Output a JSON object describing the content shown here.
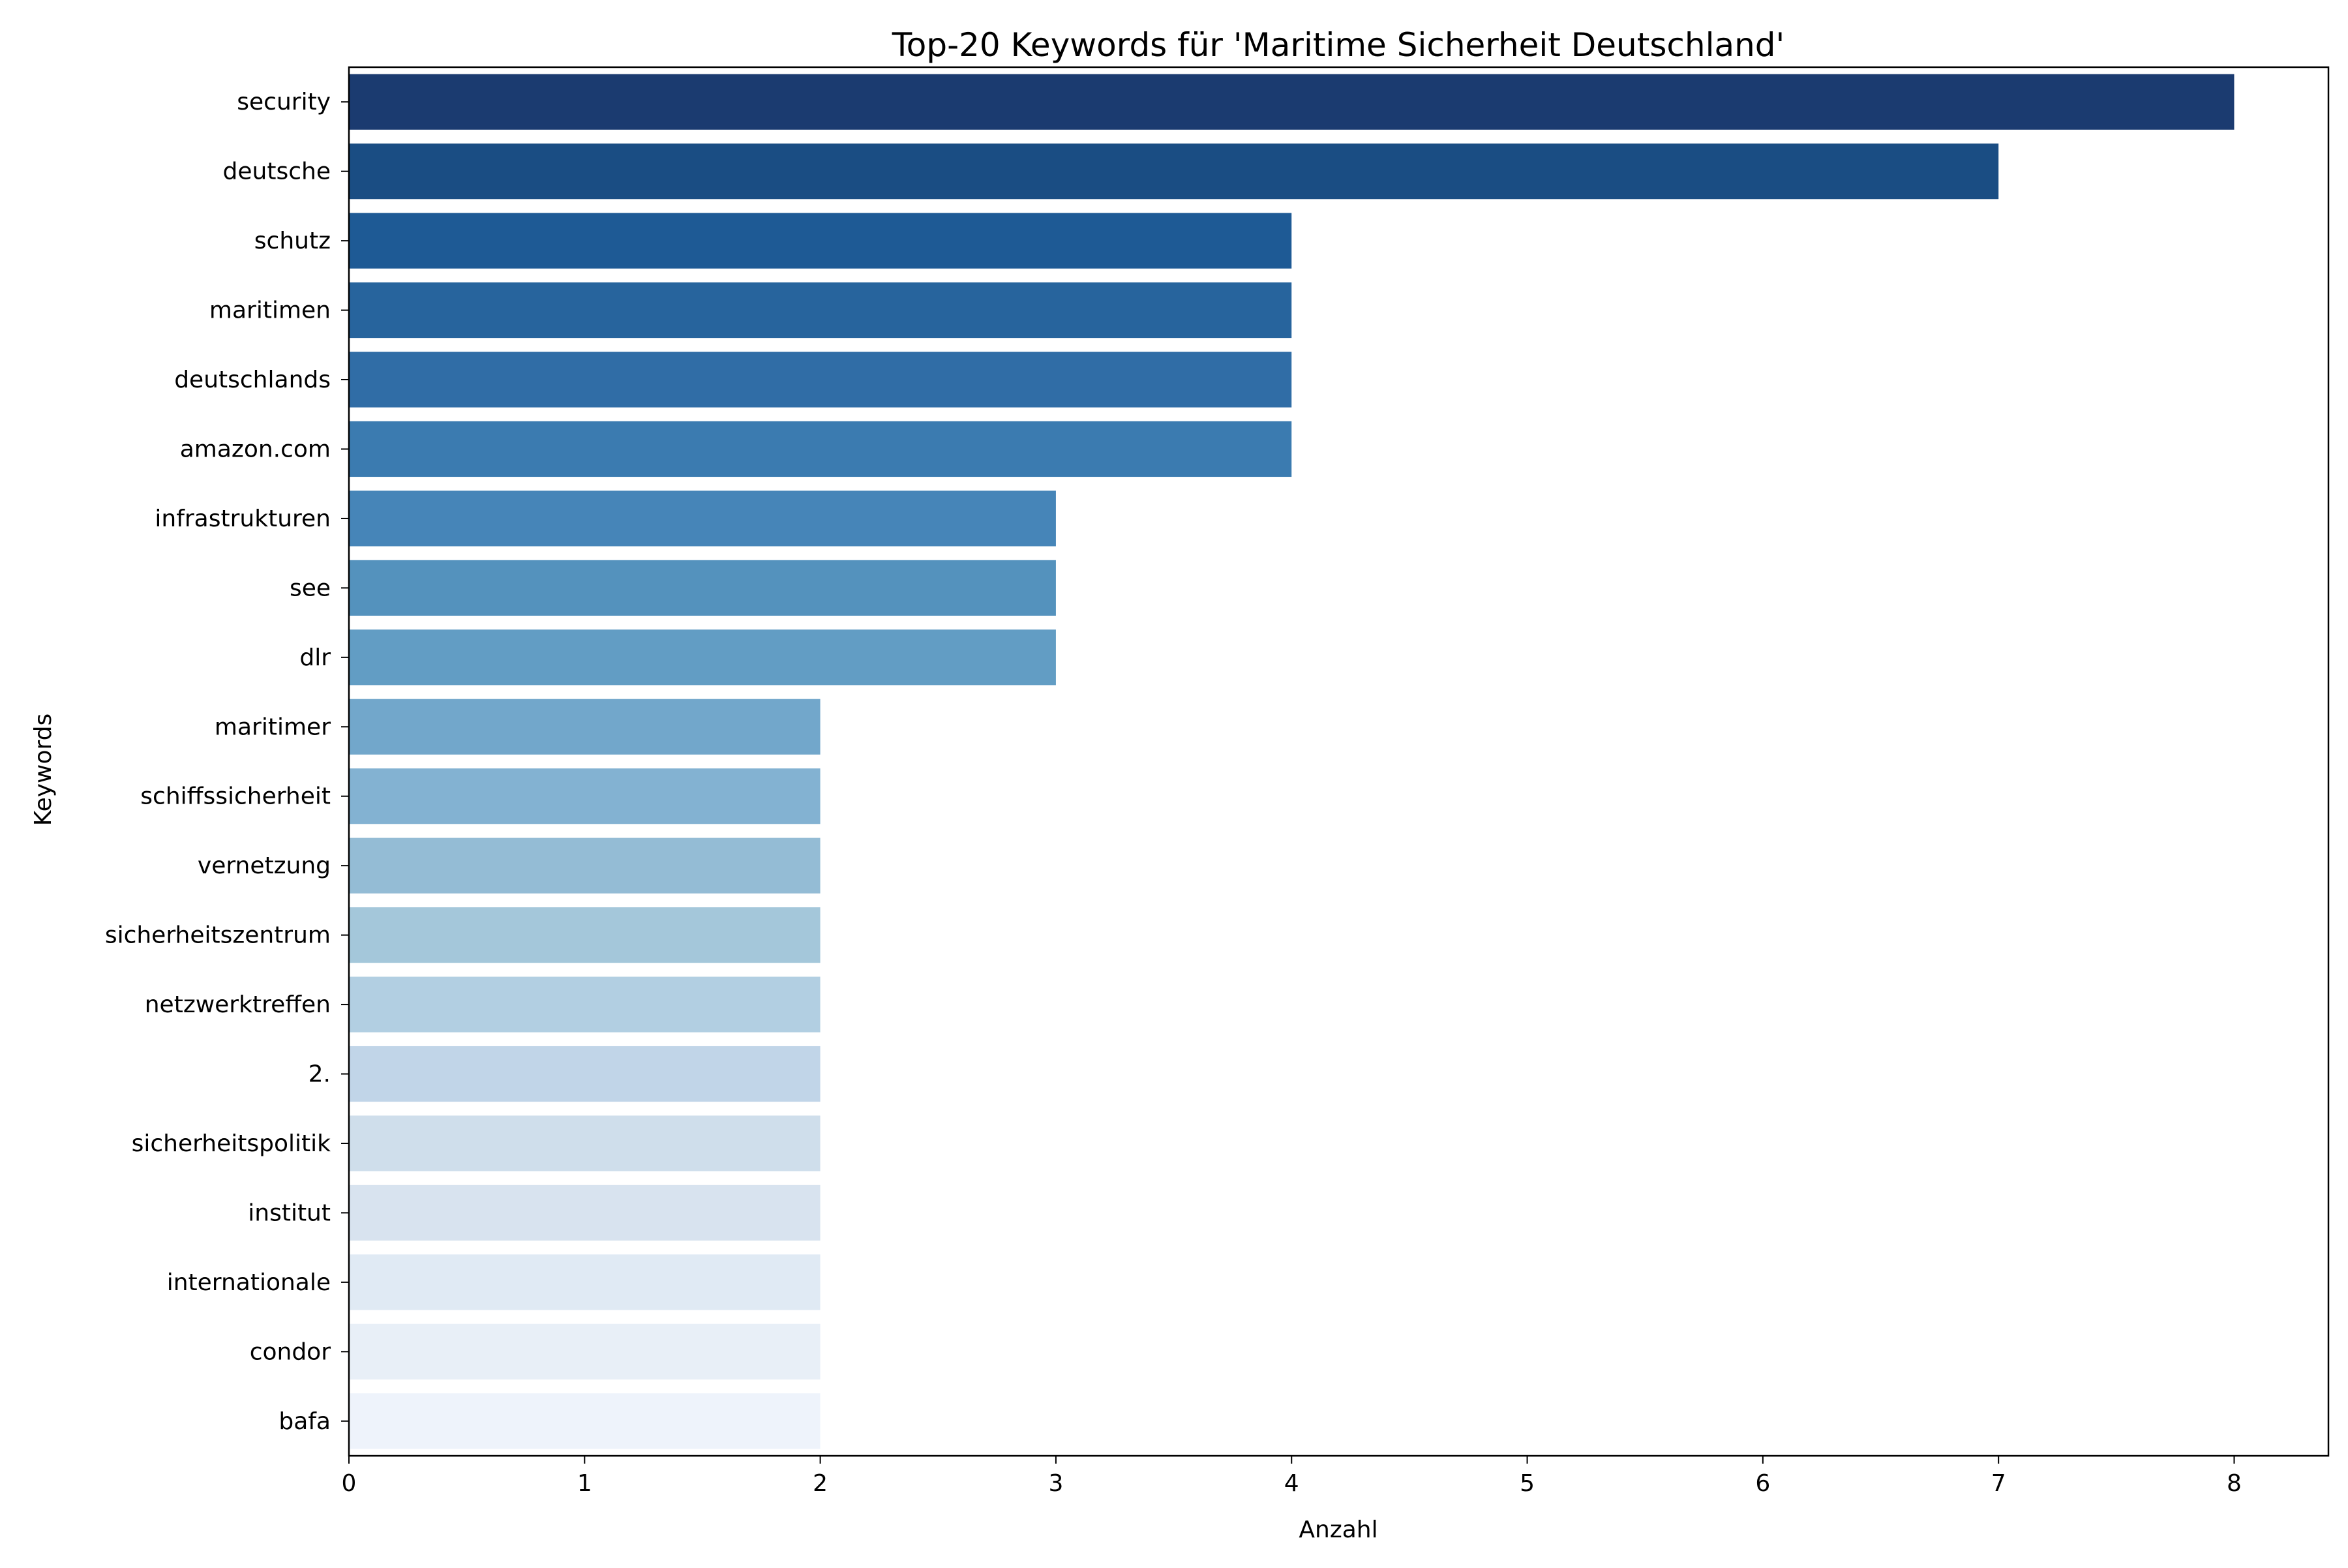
{
  "chart_data": {
    "type": "bar",
    "orientation": "horizontal",
    "title": "Top-20 Keywords für 'Maritime Sicherheit Deutschland'",
    "xlabel": "Anzahl",
    "ylabel": "Keywords",
    "categories": [
      "security",
      "deutsche",
      "schutz",
      "maritimen",
      "deutschlands",
      "amazon.com",
      "infrastrukturen",
      "see",
      "dlr",
      "maritimer",
      "schiffssicherheit",
      "vernetzung",
      "sicherheitszentrum",
      "netzwerktreffen",
      "2.",
      "sicherheitspolitik",
      "institut",
      "internationale",
      "condor",
      "bafa"
    ],
    "values": [
      8,
      7,
      4,
      4,
      4,
      4,
      3,
      3,
      3,
      2,
      2,
      2,
      2,
      2,
      2,
      2,
      2,
      2,
      2,
      2
    ],
    "xlim": [
      0,
      8.4
    ],
    "xticks": [
      0,
      1,
      2,
      3,
      4,
      5,
      6,
      7,
      8
    ],
    "grid": false,
    "legend": "none",
    "colors": [
      "#1b3b70",
      "#1a4d83",
      "#1e5a95",
      "#27649d",
      "#306da6",
      "#3b7bb0",
      "#4685b8",
      "#5492bd",
      "#629dc4",
      "#72a7cb",
      "#83b2d2",
      "#94bcd5",
      "#a4c7da",
      "#b2cfe2",
      "#c1d5e8",
      "#cfdeeb",
      "#d8e3ef",
      "#e0eaf4",
      "#e8eff7",
      "#eef3fb"
    ]
  }
}
